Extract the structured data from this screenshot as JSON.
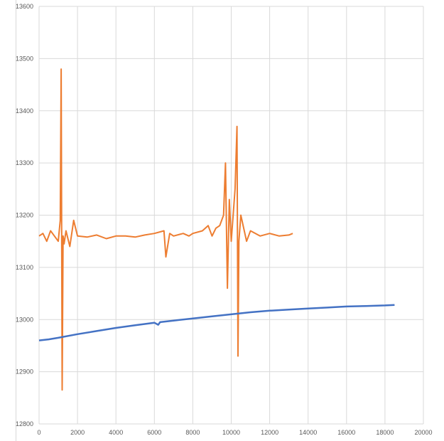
{
  "colors": {
    "series_orange": "#ed7d31",
    "series_blue": "#4472c4",
    "gridline": "#d9d9d9",
    "tick_text": "#595959"
  },
  "chart_data": {
    "type": "line",
    "title": "",
    "xlabel": "",
    "ylabel": "",
    "xlim": [
      0,
      20000
    ],
    "ylim": [
      12800,
      13600
    ],
    "grid": true,
    "legend": "none",
    "x_ticks": [
      "0",
      "2000",
      "4000",
      "6000",
      "8000",
      "10000",
      "12000",
      "14000",
      "16000",
      "18000",
      "20000"
    ],
    "y_ticks": [
      "12800",
      "12900",
      "13000",
      "13100",
      "13200",
      "13300",
      "13400",
      "13500",
      "13600"
    ],
    "series": [
      {
        "color": "#ed7d31",
        "x": [
          0,
          200,
          400,
          600,
          800,
          1000,
          1100,
          1150,
          1200,
          1250,
          1300,
          1400,
          1600,
          1800,
          2000,
          2500,
          3000,
          3500,
          4000,
          4500,
          5000,
          5500,
          6000,
          6500,
          6600,
          6800,
          7000,
          7500,
          7800,
          8000,
          8500,
          8800,
          9000,
          9200,
          9400,
          9600,
          9700,
          9800,
          9900,
          10000,
          10200,
          10300,
          10350,
          10400,
          10500,
          10800,
          11000,
          11500,
          12000,
          12500,
          13000,
          13200
        ],
        "y": [
          13160,
          13165,
          13150,
          13170,
          13160,
          13150,
          13190,
          13480,
          12865,
          13160,
          13145,
          13170,
          13140,
          13190,
          13160,
          13158,
          13162,
          13155,
          13160,
          13160,
          13158,
          13162,
          13165,
          13170,
          13120,
          13165,
          13160,
          13165,
          13160,
          13165,
          13170,
          13180,
          13160,
          13175,
          13180,
          13200,
          13300,
          13060,
          13230,
          13150,
          13250,
          13370,
          12930,
          13150,
          13200,
          13150,
          13170,
          13160,
          13165,
          13160,
          13162,
          13165
        ]
      },
      {
        "color": "#4472c4",
        "x": [
          0,
          500,
          1000,
          2000,
          3000,
          4000,
          5000,
          6000,
          6200,
          6300,
          7000,
          8000,
          9000,
          10000,
          11000,
          12000,
          13000,
          14000,
          15000,
          16000,
          17000,
          18000,
          18500
        ],
        "y": [
          12960,
          12962,
          12965,
          12972,
          12978,
          12984,
          12989,
          12994,
          12990,
          12995,
          12998,
          13002,
          13006,
          13010,
          13014,
          13017,
          13019,
          13021,
          13023,
          13025,
          13026,
          13027,
          13028
        ]
      }
    ]
  }
}
